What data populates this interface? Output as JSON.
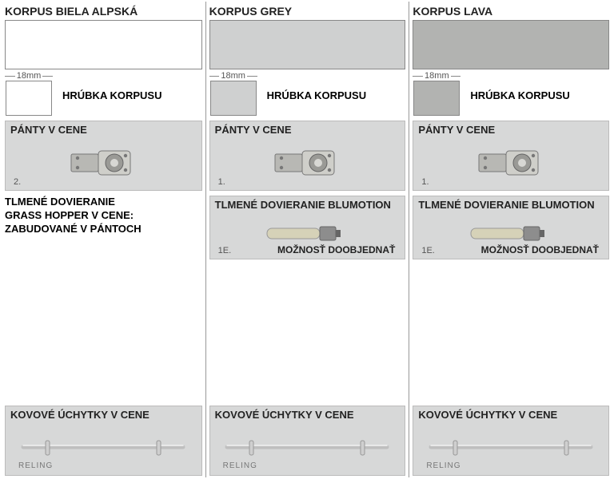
{
  "columns": [
    {
      "title": "KORPUS BIELA ALPSKÁ",
      "swatch_color": "#ffffff",
      "swatch_border": "#888888",
      "dim_text": "18mm",
      "thickness_label": "HRÚBKA KORPUSU",
      "hinges": {
        "title": "PÁNTY V CENE",
        "num": "2."
      },
      "damper_mode": "builtin",
      "builtin_text_1": "TLMENÉ DOVIERANIE",
      "builtin_text_2": "GRASS HOPPER V CENE:",
      "builtin_text_3": "ZABUDOVANÉ V PÁNTOCH",
      "handles": {
        "title": "KOVOVÉ ÚCHYTKY V CENE",
        "label": "RELING"
      }
    },
    {
      "title": "KORPUS GREY",
      "swatch_color": "#cfd0d0",
      "swatch_border": "#888888",
      "dim_text": "18mm",
      "thickness_label": "HRÚBKA KORPUSU",
      "hinges": {
        "title": "PÁNTY V CENE",
        "num": "1."
      },
      "damper_mode": "addon",
      "damper": {
        "title": "TLMENÉ DOVIERANIE BLUMOTION",
        "num": "1E.",
        "sub": "MOŽNOSŤ DOOBJEDNAŤ"
      },
      "handles": {
        "title": "KOVOVÉ ÚCHYTKY V CENE",
        "label": "RELING"
      }
    },
    {
      "title": "KORPUS LAVA",
      "swatch_color": "#b2b3b1",
      "swatch_border": "#888888",
      "dim_text": "18mm",
      "thickness_label": "HRÚBKA KORPUSU",
      "hinges": {
        "title": "PÁNTY V CENE",
        "num": "1."
      },
      "damper_mode": "addon",
      "damper": {
        "title": "TLMENÉ DOVIERANIE BLUMOTION",
        "num": "1E.",
        "sub": "MOŽNOSŤ DOOBJEDNAŤ"
      },
      "handles": {
        "title": "KOVOVÉ ÚCHYTKY V CENE",
        "label": "RELING"
      }
    }
  ],
  "styling": {
    "panel_bg": "#d7d8d8",
    "divider": "#999999",
    "text": "#222222"
  }
}
